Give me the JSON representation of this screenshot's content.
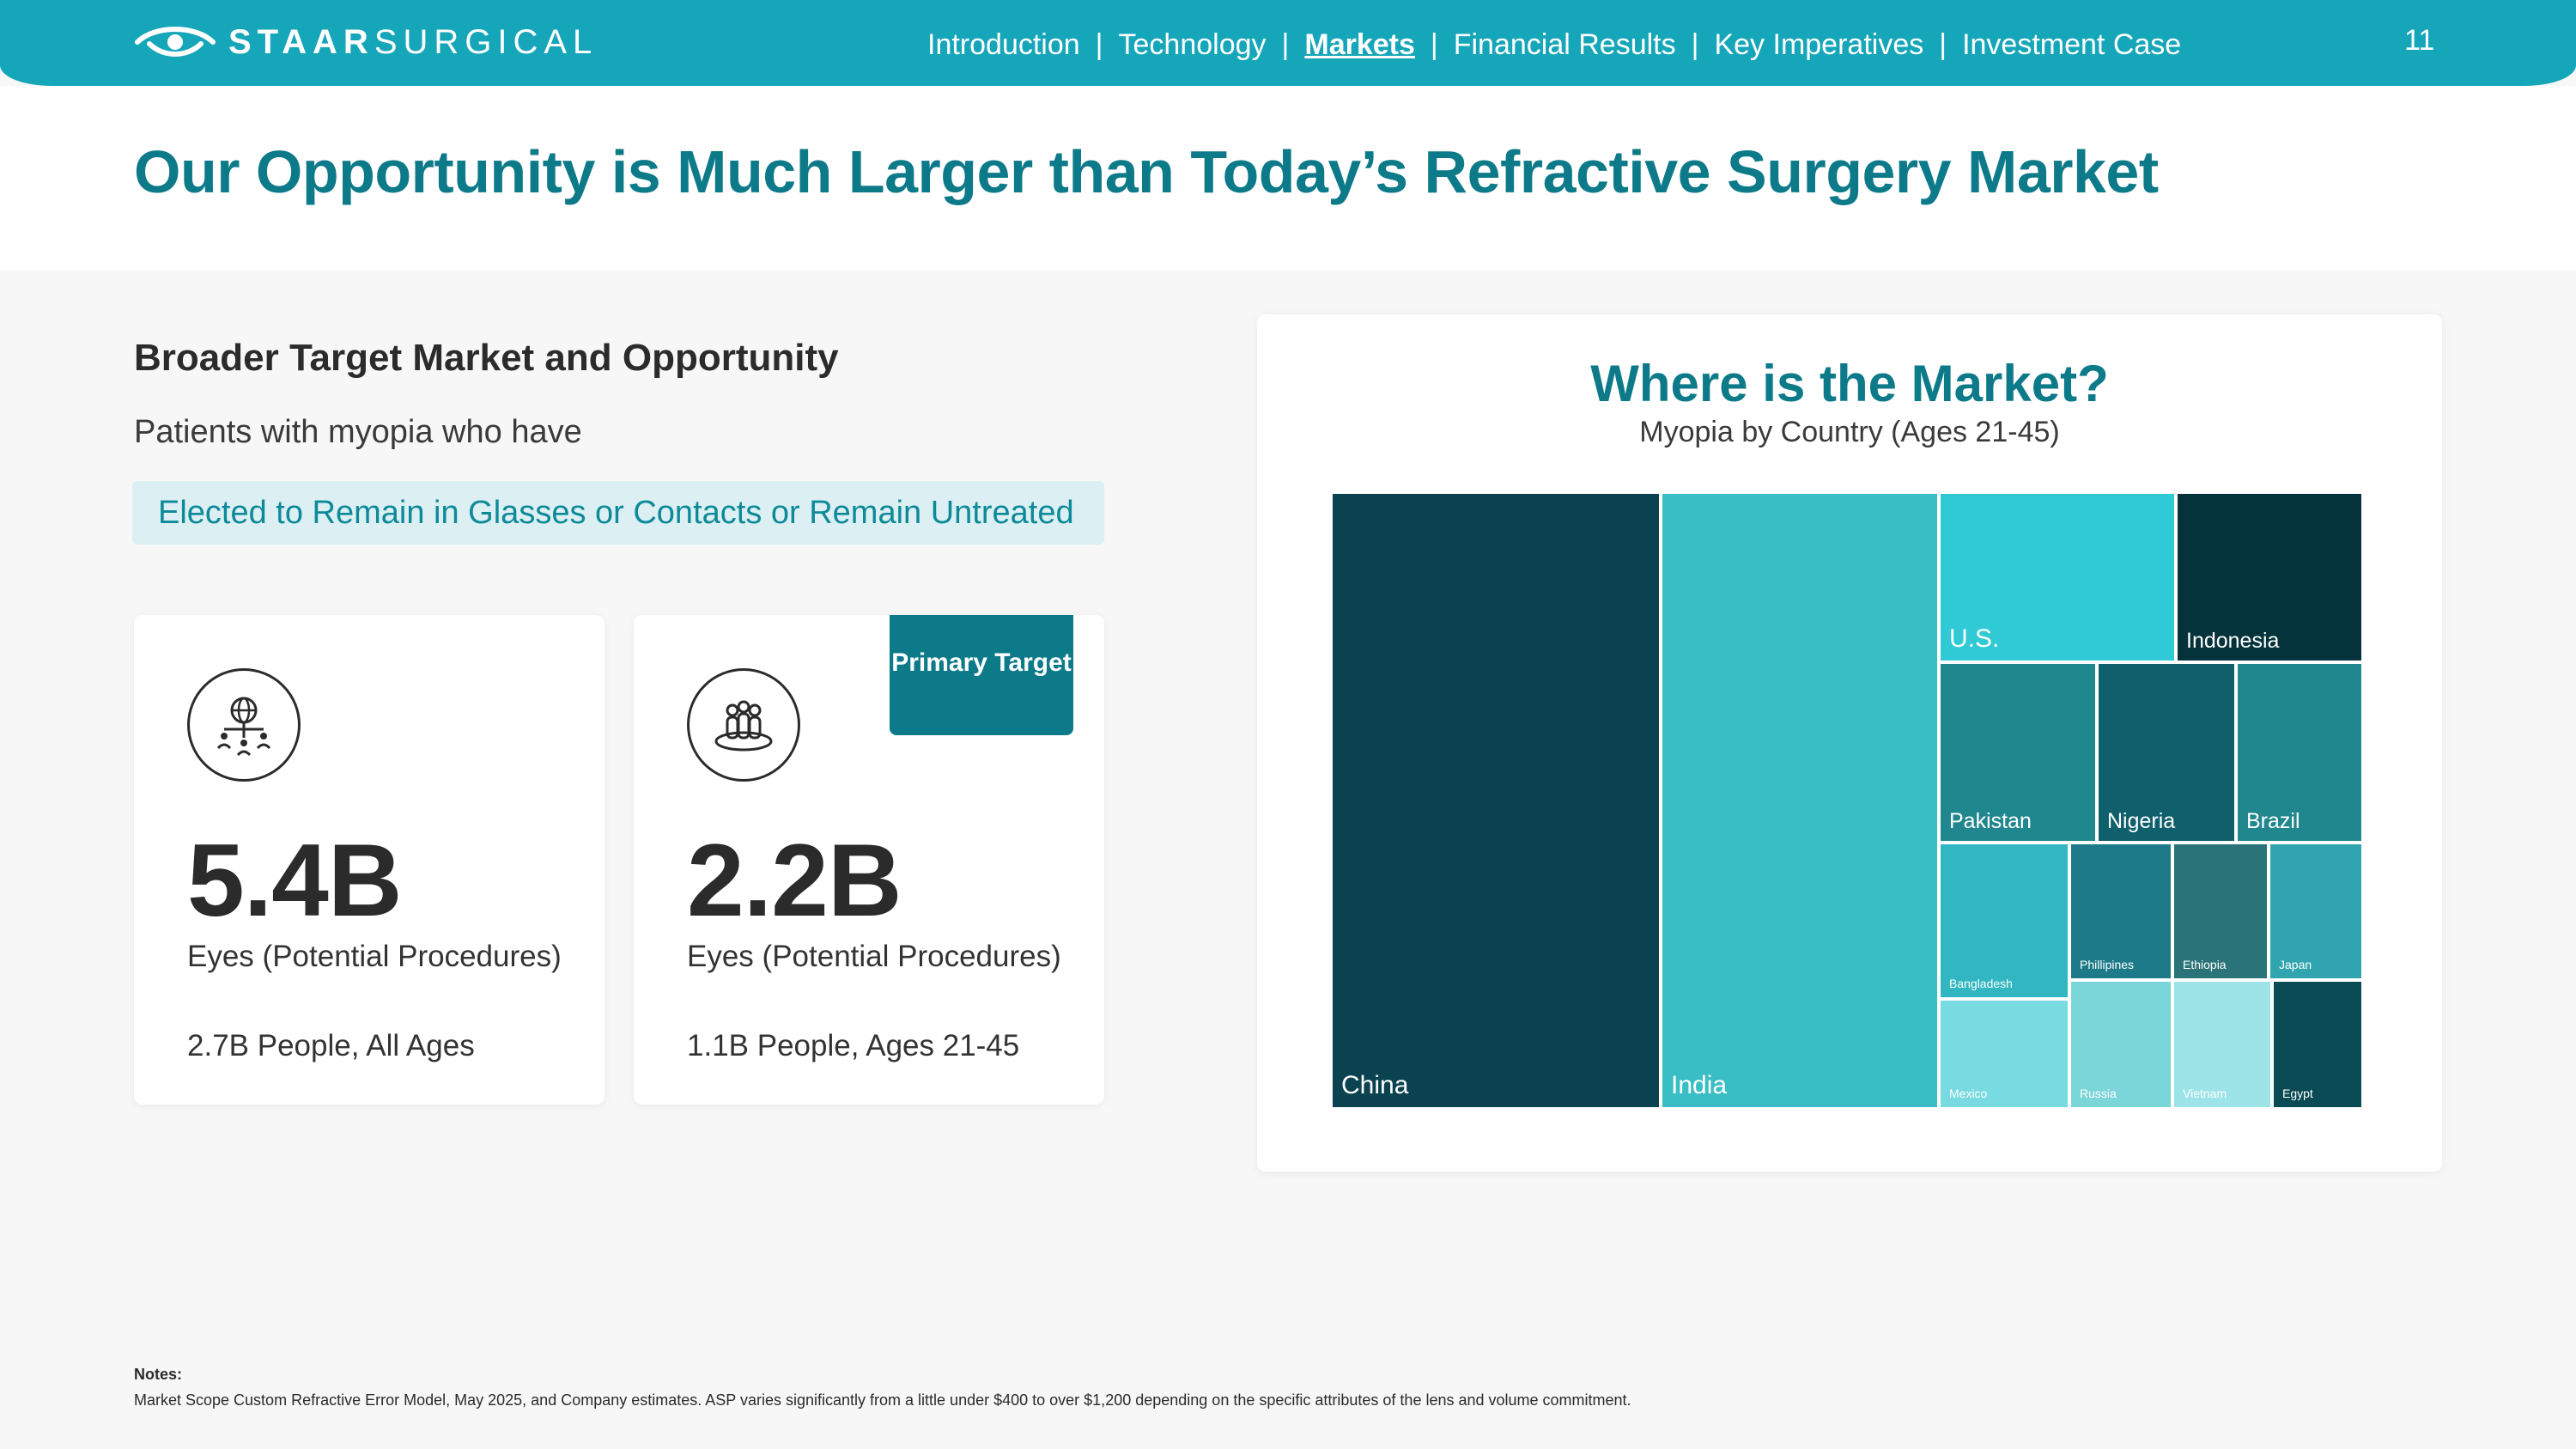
{
  "brand": {
    "logo_bold": "STAAR",
    "logo_light": "SURGICAL"
  },
  "nav": {
    "items": [
      "Introduction",
      "Technology",
      "Markets",
      "Financial Results",
      "Key Imperatives",
      "Investment Case"
    ],
    "active": "Markets"
  },
  "page_number": "11",
  "title": "Our Opportunity is Much Larger than Today’s Refractive Surgery Market",
  "left": {
    "heading": "Broader Target Market and Opportunity",
    "subtext": "Patients with myopia who have",
    "pill": "Elected to Remain in Glasses or Contacts or Remain Untreated",
    "cards": [
      {
        "icon": "globe-people-icon",
        "value": "5.4B",
        "label": "Eyes (Potential Procedures)",
        "foot": "2.7B People, All Ages"
      },
      {
        "icon": "group-people-icon",
        "value": "2.2B",
        "label": "Eyes (Potential Procedures)",
        "foot": "1.1B People, Ages 21-45",
        "badge": "Primary Target"
      }
    ]
  },
  "chart_data": {
    "type": "treemap",
    "title": "Where is the Market?",
    "subtitle": "Myopia by Country (Ages 21-45)",
    "cells": [
      {
        "label": "China",
        "color": "#0a434f"
      },
      {
        "label": "India",
        "color": "#38bec4"
      },
      {
        "label": "U.S.",
        "color": "#2fcad6"
      },
      {
        "label": "Indonesia",
        "color": "#05333c"
      },
      {
        "label": "Pakistan",
        "color": "#21878f"
      },
      {
        "label": "Nigeria",
        "color": "#0f5f6c"
      },
      {
        "label": "Brazil",
        "color": "#21878f"
      },
      {
        "label": "Bangladesh",
        "color": "#32b6c2"
      },
      {
        "label": "Phillipines",
        "color": "#1d7a88"
      },
      {
        "label": "Ethiopia",
        "color": "#2a7378"
      },
      {
        "label": "Japan",
        "color": "#30a5af"
      },
      {
        "label": "Mexico",
        "color": "#78dbe2"
      },
      {
        "label": "Russia",
        "color": "#7bd6da"
      },
      {
        "label": "Vietnam",
        "color": "#9ce4e8"
      },
      {
        "label": "Egypt",
        "color": "#0a4a54"
      }
    ]
  },
  "notes": {
    "heading": "Notes:",
    "text": "Market Scope Custom Refractive Error Model, May 2025, and Company estimates. ASP varies significantly from a little under $400 to over $1,200 depending on the specific attributes of the lens and volume commitment."
  }
}
